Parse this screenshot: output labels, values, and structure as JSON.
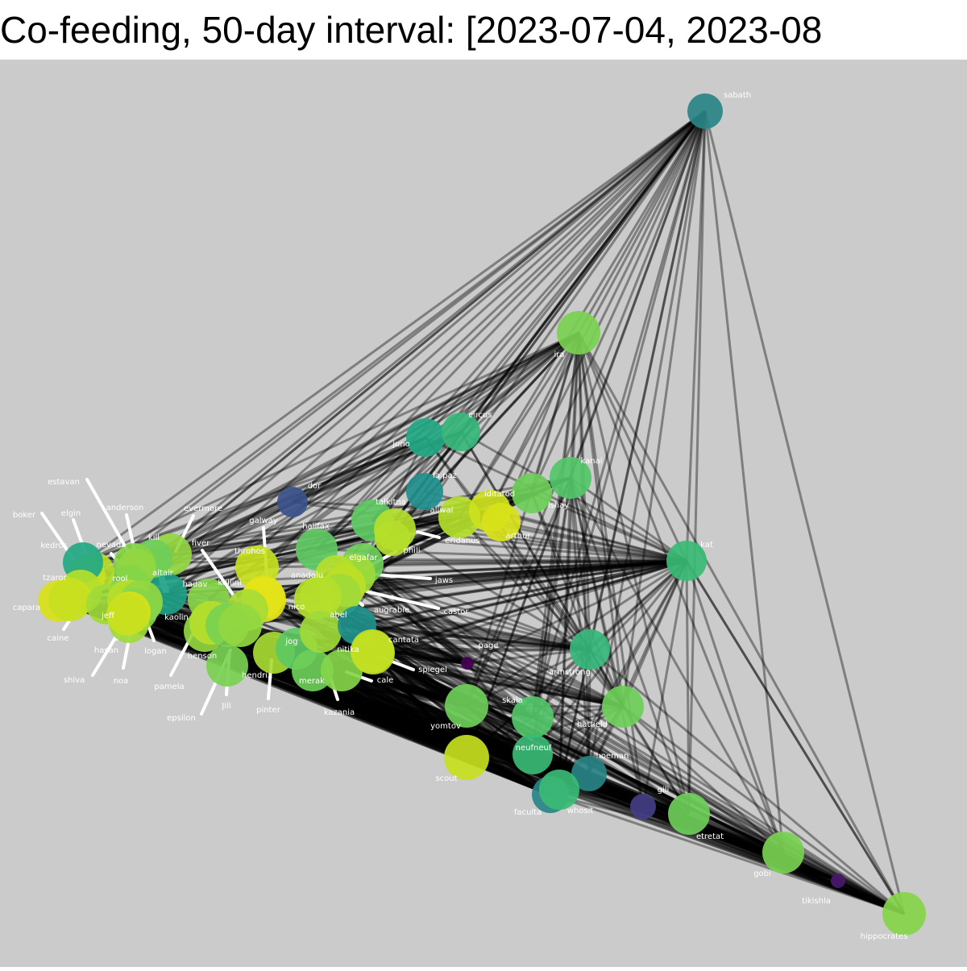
{
  "title": "Co-feeding, 50-day interval: [2023-07-04, 2023-08",
  "colors": {
    "background": "#cbcbcb",
    "edge": "#000000",
    "leader": "#ffffff",
    "label": "#ffffff"
  },
  "nodes": [
    {
      "id": "sabath",
      "color": "#2a8486"
    },
    {
      "id": "ira",
      "color": "#7ad151"
    },
    {
      "id": "juno",
      "color": "#22a884"
    },
    {
      "id": "circus",
      "color": "#35b779"
    },
    {
      "id": "kanai",
      "color": "#52c569"
    },
    {
      "id": "la paz",
      "color": "#218f8d"
    },
    {
      "id": "aliwal",
      "color": "#b5de2b"
    },
    {
      "id": "iditarod",
      "color": "#cde11d"
    },
    {
      "id": "ishay",
      "color": "#6ece58"
    },
    {
      "id": "arthur",
      "color": "#d8e219"
    },
    {
      "id": "dor",
      "color": "#3b528b"
    },
    {
      "id": "talkitna",
      "color": "#5ec962"
    },
    {
      "id": "eridanus",
      "color": "#b5de2b"
    },
    {
      "id": "phili",
      "color": "#b5de2b"
    },
    {
      "id": "kat",
      "color": "#3bbb75"
    },
    {
      "id": "halifax",
      "color": "#5ec962"
    },
    {
      "id": "elgafar",
      "color": "#6ece58"
    },
    {
      "id": "jaws",
      "color": "#a0da39"
    },
    {
      "id": "anadolu",
      "color": "#b5de2b"
    },
    {
      "id": "castor",
      "color": "#bddf26"
    },
    {
      "id": "augrabie",
      "color": "#a0da39"
    },
    {
      "id": "abel",
      "color": "#b5de2b"
    },
    {
      "id": "nico",
      "color": "#b5de2b"
    },
    {
      "id": "throhos",
      "color": "#c8e020"
    },
    {
      "id": "galway",
      "color": "#d8e219"
    },
    {
      "id": "kullini",
      "color": "#e5e419"
    },
    {
      "id": "fiver",
      "color": "#a8db34"
    },
    {
      "id": "evermore",
      "color": "#93d741"
    },
    {
      "id": "hadav",
      "color": "#86d549"
    },
    {
      "id": "altair",
      "color": "#1fa187"
    },
    {
      "id": "kill",
      "color": "#6ece58"
    },
    {
      "id": "anderson",
      "color": "#86d549"
    },
    {
      "id": "estavan",
      "color": "#93d741"
    },
    {
      "id": "nevada",
      "color": "#86d549"
    },
    {
      "id": "elgin",
      "color": "#b5de2b"
    },
    {
      "id": "boker",
      "color": "#c8e020"
    },
    {
      "id": "kedros",
      "color": "#22a884"
    },
    {
      "id": "tzaror",
      "color": "#b5de2b"
    },
    {
      "id": "capara",
      "color": "#d8e219"
    },
    {
      "id": "caine",
      "color": "#c8e020"
    },
    {
      "id": "jeff",
      "color": "#a0da39"
    },
    {
      "id": "rool",
      "color": "#b5de2b"
    },
    {
      "id": "kaolin",
      "color": "#93d741"
    },
    {
      "id": "hasan",
      "color": "#86d549"
    },
    {
      "id": "logan",
      "color": "#a0da39"
    },
    {
      "id": "shiva",
      "color": "#d8e219"
    },
    {
      "id": "noa",
      "color": "#c8e020"
    },
    {
      "id": "henson",
      "color": "#93d741"
    },
    {
      "id": "pamela",
      "color": "#b5de2b"
    },
    {
      "id": "epsilon",
      "color": "#7ad151"
    },
    {
      "id": "Jill",
      "color": "#7ad151"
    },
    {
      "id": "hendrix",
      "color": "#93d741"
    },
    {
      "id": "pinter",
      "color": "#a8db34"
    },
    {
      "id": "jog",
      "color": "#5ec962"
    },
    {
      "id": "merak",
      "color": "#6ece58"
    },
    {
      "id": "nitika",
      "color": "#a0da39"
    },
    {
      "id": "kazania",
      "color": "#86d549"
    },
    {
      "id": "cantata",
      "color": "#21918c"
    },
    {
      "id": "cale",
      "color": "#c2df23"
    },
    {
      "id": "spiegel",
      "color": "#c2df23"
    },
    {
      "id": "page",
      "color": "#440154"
    },
    {
      "id": "armstrong",
      "color": "#35b779"
    },
    {
      "id": "yomtov",
      "color": "#6ece58"
    },
    {
      "id": "skala",
      "color": "#52c569"
    },
    {
      "id": "hatfield",
      "color": "#6ece58"
    },
    {
      "id": "neufneuf",
      "color": "#3bbb75"
    },
    {
      "id": "hoeman",
      "color": "#2a8486"
    },
    {
      "id": "scout",
      "color": "#c8e020"
    },
    {
      "id": "faculta",
      "color": "#2a8486"
    },
    {
      "id": "whosit",
      "color": "#3bbb75"
    },
    {
      "id": "gili",
      "color": "#433e85"
    },
    {
      "id": "etretat",
      "color": "#6ece58"
    },
    {
      "id": "gobi",
      "color": "#7ad151"
    },
    {
      "id": "tikishla",
      "color": "#481a6c"
    },
    {
      "id": "hippocrates",
      "color": "#86d549"
    }
  ],
  "hub_edges": [
    {
      "from": "sabath",
      "targets": [
        "ira",
        "juno",
        "circus",
        "dor",
        "kat",
        "kill",
        "rool",
        "nevada",
        "kedros",
        "capara",
        "caine",
        "jeff",
        "hadav",
        "altair",
        "talkitna",
        "halifax",
        "elgafar",
        "aliwal",
        "iditarod",
        "ishay",
        "kanai",
        "arthur",
        "armstrong",
        "hatfield",
        "neufneuf",
        "skala",
        "whosit",
        "hoeman",
        "etretat",
        "gobi",
        "hippocrates",
        "yomtov",
        "scout",
        "castor",
        "jaws",
        "nitika",
        "anadolu",
        "la paz",
        "merak",
        "henson"
      ]
    },
    {
      "from": "ira",
      "targets": [
        "kedros",
        "capara",
        "caine",
        "nevada",
        "rool",
        "kill",
        "altair",
        "hadav",
        "juno",
        "circus",
        "dor",
        "talkitna",
        "halifax",
        "elgafar",
        "aliwal",
        "iditarod",
        "ishay",
        "kanai",
        "arthur",
        "kat",
        "armstrong",
        "hatfield",
        "skala",
        "neufneuf",
        "whosit",
        "hoeman",
        "etretat",
        "gobi",
        "hippocrates",
        "yomtov",
        "gili",
        "jaws",
        "castor",
        "henson"
      ]
    },
    {
      "from": "kat",
      "targets": [
        "kedros",
        "capara",
        "caine",
        "nevada",
        "rool",
        "kill",
        "altair",
        "hadav",
        "kaolin",
        "logan",
        "henson",
        "kullini",
        "galway",
        "throhos",
        "nico",
        "abel",
        "anadolu",
        "halifax",
        "elgafar",
        "jaws",
        "castor",
        "augrabie",
        "talkitna",
        "eridanus",
        "phili",
        "aliwal",
        "iditarod",
        "ishay",
        "arthur",
        "kanai",
        "juno",
        "circus",
        "la paz",
        "dor",
        "armstrong",
        "hatfield",
        "skala",
        "neufneuf",
        "yomtov",
        "whosit",
        "faculta",
        "hoeman",
        "scout",
        "etretat",
        "gobi",
        "hippocrates",
        "page",
        "gili",
        "cantata",
        "jog",
        "nitika",
        "spiegel",
        "merak",
        "hendrix",
        "Jill",
        "epsilon",
        "pinter",
        "cale",
        "kazania"
      ]
    },
    {
      "from": "hippocrates",
      "targets": [
        "kedros",
        "capara",
        "caine",
        "jeff",
        "hasan",
        "shiva",
        "noa",
        "logan",
        "kaolin",
        "henson",
        "pamela",
        "epsilon",
        "Jill",
        "hendrix",
        "pinter",
        "merak",
        "kazania",
        "jog",
        "nitika",
        "cale",
        "spiegel",
        "cantata",
        "page",
        "yomtov",
        "scout",
        "skala",
        "neufneuf",
        "whosit",
        "faculta",
        "hoeman",
        "gili",
        "etretat",
        "gobi",
        "tikishla",
        "armstrong",
        "hatfield",
        "kat",
        "abel",
        "nico",
        "castor",
        "jaws",
        "elgafar",
        "anadolu",
        "augrabie",
        "kullini",
        "galway",
        "hadav",
        "rool",
        "altair",
        "nevada",
        "tzaror"
      ]
    },
    {
      "from": "armstrong",
      "targets": [
        "kedros",
        "capara",
        "caine",
        "rool",
        "altair",
        "henson",
        "kullini",
        "nico",
        "abel",
        "elgafar",
        "jaws",
        "castor",
        "talkitna",
        "aliwal",
        "iditarod",
        "ishay",
        "kanai",
        "juno",
        "circus",
        "hatfield",
        "skala",
        "neufneuf",
        "whosit",
        "hoeman",
        "etretat",
        "yomtov",
        "scout",
        "page",
        "cantata",
        "nitika",
        "jog",
        "spiegel"
      ]
    },
    {
      "from": "hatfield",
      "targets": [
        "kedros",
        "capara",
        "caine",
        "rool",
        "altair",
        "henson",
        "kullini",
        "nico",
        "abel",
        "elgafar",
        "jaws",
        "castor",
        "aliwal",
        "iditarod",
        "ishay",
        "kanai",
        "juno",
        "circus",
        "skala",
        "neufneuf",
        "whosit",
        "hoeman",
        "etretat",
        "gobi",
        "yomtov",
        "scout",
        "cantata",
        "nitika",
        "jog"
      ]
    },
    {
      "from": "kanai",
      "targets": [
        "kedros",
        "capara",
        "caine",
        "rool",
        "altair",
        "henson",
        "kullini",
        "nico",
        "abel",
        "elgafar",
        "jaws",
        "castor",
        "neufneuf",
        "skala",
        "whosit",
        "hoeman",
        "gili",
        "etretat",
        "gobi",
        "yomtov",
        "scout"
      ]
    },
    {
      "from": "etretat",
      "targets": [
        "kedros",
        "capara",
        "caine",
        "jeff",
        "henson",
        "kullini",
        "nico",
        "abel",
        "elgafar",
        "jaws",
        "cantata",
        "nitika",
        "spiegel",
        "yomtov",
        "scout",
        "skala",
        "neufneuf",
        "whosit"
      ]
    },
    {
      "from": "gobi",
      "targets": [
        "kedros",
        "capara",
        "caine",
        "jeff",
        "henson",
        "kullini",
        "nico",
        "abel",
        "elgafar",
        "nitika",
        "spiegel",
        "yomtov",
        "scout",
        "whosit",
        "faculta"
      ]
    },
    {
      "from": "juno",
      "targets": [
        "kedros",
        "capara",
        "caine",
        "nevada",
        "kill",
        "altair",
        "hadav",
        "halifax",
        "elgafar",
        "dor"
      ]
    },
    {
      "from": "circus",
      "targets": [
        "kedros",
        "capara",
        "caine",
        "nevada",
        "kill",
        "altair",
        "halifax",
        "elgafar",
        "talkitna"
      ]
    },
    {
      "from": "skala",
      "targets": [
        "kedros",
        "capara",
        "caine",
        "rool",
        "henson",
        "kullini",
        "nico",
        "abel",
        "elgafar",
        "jaws",
        "cantata",
        "nitika",
        "spiegel",
        "yomtov",
        "scout"
      ]
    },
    {
      "from": "neufneuf",
      "targets": [
        "kedros",
        "capara",
        "caine",
        "henson",
        "kullini",
        "nico",
        "abel",
        "elgafar",
        "cantata",
        "nitika",
        "spiegel",
        "scout",
        "yomtov"
      ]
    },
    {
      "from": "whosit",
      "targets": [
        "kedros",
        "capara",
        "caine",
        "henson",
        "kullini",
        "nico",
        "abel",
        "cantata",
        "nitika",
        "spiegel",
        "scout",
        "yomtov",
        "page"
      ]
    },
    {
      "from": "hoeman",
      "targets": [
        "kedros",
        "capara",
        "caine",
        "henson",
        "kullini",
        "nico",
        "abel",
        "cantata",
        "nitika",
        "scout"
      ]
    },
    {
      "from": "iditarod",
      "targets": [
        "kedros",
        "capara",
        "caine",
        "kill",
        "altair",
        "henson",
        "kullini",
        "nico",
        "abel",
        "elgafar",
        "halifax",
        "dor"
      ]
    },
    {
      "from": "ishay",
      "targets": [
        "kedros",
        "capara",
        "caine",
        "kill",
        "altair",
        "henson",
        "kullini",
        "nico",
        "abel",
        "elgafar",
        "halifax"
      ]
    },
    {
      "from": "aliwal",
      "targets": [
        "kedros",
        "capara",
        "caine",
        "kill",
        "altair",
        "henson",
        "kullini",
        "nico",
        "abel",
        "elgafar",
        "halifax"
      ]
    }
  ],
  "dense_fans": [
    {
      "from": "yomtov",
      "to_group": [
        "kedros",
        "capara",
        "caine",
        "jeff",
        "hasan",
        "shiva",
        "logan",
        "kaolin",
        "henson",
        "pamela",
        "epsilon",
        "Jill",
        "hendrix",
        "pinter",
        "merak",
        "kazania",
        "jog",
        "nitika",
        "cale",
        "spiegel",
        "nico",
        "abel",
        "kullini",
        "rool",
        "tzaror"
      ]
    },
    {
      "from": "scout",
      "to_group": [
        "kedros",
        "capara",
        "caine",
        "jeff",
        "hasan",
        "shiva",
        "logan",
        "kaolin",
        "henson",
        "pamela",
        "epsilon",
        "Jill",
        "hendrix",
        "pinter",
        "merak",
        "kazania",
        "jog",
        "nitika",
        "cale",
        "spiegel",
        "nico",
        "abel",
        "kullini",
        "rool"
      ]
    },
    {
      "from": "faculta",
      "to_group": [
        "kedros",
        "capara",
        "caine",
        "jeff",
        "hasan",
        "shiva",
        "logan",
        "kaolin",
        "henson",
        "pamela",
        "Jill",
        "hendrix",
        "pinter",
        "merak",
        "kazania",
        "jog",
        "nitika",
        "cale",
        "spiegel"
      ]
    },
    {
      "from": "gili",
      "to_group": [
        "kedros",
        "capara",
        "caine",
        "jeff",
        "hasan",
        "logan",
        "henson",
        "pamela",
        "Jill",
        "hendrix",
        "pinter",
        "merak",
        "kazania",
        "nitika",
        "cale",
        "spiegel"
      ]
    },
    {
      "from": "tikishla",
      "to_group": [
        "capara",
        "caine",
        "jeff",
        "hasan",
        "shiva",
        "henson",
        "pamela",
        "Jill",
        "hendrix",
        "pinter",
        "kazania",
        "cale"
      ]
    },
    {
      "from": "page",
      "to_group": [
        "capara",
        "caine",
        "henson",
        "kullini",
        "nico",
        "abel",
        "elgafar",
        "jaws",
        "cantata",
        "nitika",
        "jog"
      ]
    }
  ]
}
